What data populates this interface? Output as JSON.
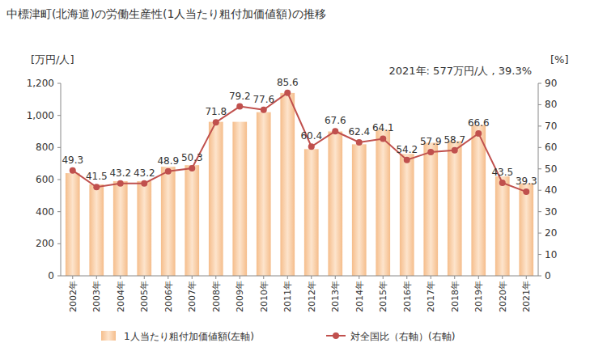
{
  "chart_data": {
    "type": "bar",
    "title": "中標津町(北海道)の労働生産性(1人当たり粗付加価値額)の推移",
    "annotation": "2021年: 577万円/人 , 39.3%",
    "y_label": "[万円/人]",
    "y2_label": "[%]",
    "categories": [
      "2002年",
      "2003年",
      "2004年",
      "2005年",
      "2006年",
      "2007年",
      "2008年",
      "2009年",
      "2010年",
      "2011年",
      "2012年",
      "2013年",
      "2014年",
      "2015年",
      "2016年",
      "2017年",
      "2018年",
      "2019年",
      "2020年",
      "2021年"
    ],
    "series": [
      {
        "name": "1人当たり粗付加価値額(左軸)",
        "type": "bar",
        "color": "#f5bd8b",
        "values": [
          640,
          570,
          590,
          590,
          680,
          690,
          960,
          960,
          1020,
          1140,
          790,
          900,
          820,
          910,
          760,
          830,
          840,
          940,
          620,
          577
        ]
      },
      {
        "name": "対全国比（右軸）(右軸)",
        "type": "line",
        "axis": "y2",
        "color": "#c0504d",
        "marker": "circle",
        "line_style": "solid",
        "data_labels": true,
        "values": [
          49.3,
          41.5,
          43.2,
          43.2,
          48.9,
          50.3,
          71.8,
          79.2,
          77.6,
          85.6,
          60.4,
          67.6,
          62.4,
          64.1,
          54.2,
          57.9,
          58.7,
          66.6,
          43.5,
          39.3
        ]
      }
    ],
    "ylim": [
      0,
      1200
    ],
    "yticks": [
      0,
      200,
      400,
      600,
      800,
      {
        "value": 1000,
        "label": "1,000"
      },
      {
        "value": 1200,
        "label": "1,200"
      }
    ],
    "y2lim": [
      0,
      90
    ],
    "y2ticks": [
      0,
      10,
      20,
      30,
      40,
      50,
      60,
      70,
      80,
      90
    ],
    "grid": false,
    "legend": "bottom"
  }
}
